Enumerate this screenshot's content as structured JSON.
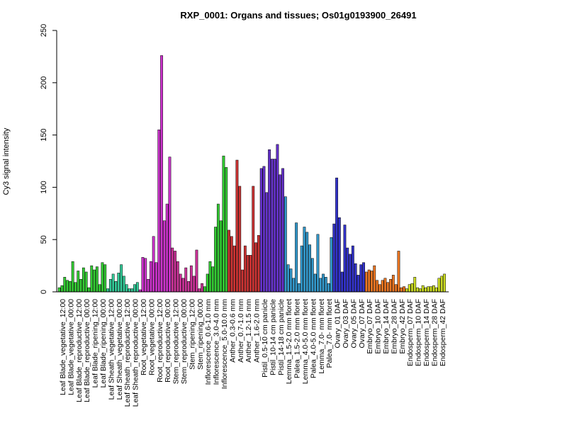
{
  "chart_data": {
    "type": "bar",
    "title": "RXP_0001: Organs and tissues; Os01g0193900_26491",
    "xlabel": "",
    "ylabel": "Cy3 signal intensity",
    "ylim": [
      0,
      250
    ],
    "yticks": [
      0,
      50,
      100,
      150,
      200,
      250
    ],
    "grid": false,
    "legend": "none",
    "groups": [
      {
        "label": "Leaf Blade_vegetative_12:00",
        "color": "#33cc33",
        "values": [
          4,
          6,
          14
        ]
      },
      {
        "label": "Leaf Blade_vegetative_00:00",
        "color": "#33cc33",
        "values": [
          11,
          10,
          29
        ]
      },
      {
        "label": "Leaf Blade_reproductive_12:00",
        "color": "#33cc33",
        "values": [
          9,
          20,
          12
        ]
      },
      {
        "label": "Leaf Blade_reproductive_00:00",
        "color": "#33cc33",
        "values": [
          23,
          19,
          4
        ]
      },
      {
        "label": "Leaf Blade_ripening_12:00",
        "color": "#33cc33",
        "values": [
          25,
          21,
          24
        ]
      },
      {
        "label": "Leaf Blade_ripening_00:00",
        "color": "#33cc33",
        "values": [
          7,
          28,
          26
        ]
      },
      {
        "label": "Leaf Sheath_vegetative_12:00",
        "color": "#33cc99",
        "values": [
          3,
          12,
          17
        ]
      },
      {
        "label": "Leaf Sheath_vegetative_00:00",
        "color": "#33cc99",
        "values": [
          10,
          18,
          26
        ]
      },
      {
        "label": "Leaf Sheath_reproductive_12:00",
        "color": "#33cc99",
        "values": [
          15,
          7,
          3
        ]
      },
      {
        "label": "Leaf Sheath_reproductive_00:00",
        "color": "#33cc99",
        "values": [
          3,
          7,
          9
        ]
      },
      {
        "label": "Root_vegetative_12:00",
        "color": "#cc33cc",
        "values": [
          2,
          33,
          32
        ]
      },
      {
        "label": "Root_vegetative_00:00",
        "color": "#cc33cc",
        "values": [
          12,
          29,
          53
        ]
      },
      {
        "label": "Root_reproductive_12:00",
        "color": "#cc33cc",
        "values": [
          28,
          155,
          226
        ]
      },
      {
        "label": "Root_reproductive_00:00",
        "color": "#cc33cc",
        "values": [
          68,
          84,
          129
        ]
      },
      {
        "label": "Stem_reproductive_12:00",
        "color": "#cc3399",
        "values": [
          42,
          39,
          29
        ]
      },
      {
        "label": "Stem_reproductive_00:00",
        "color": "#cc3399",
        "values": [
          17,
          13,
          23
        ]
      },
      {
        "label": "Stem_ripening_12:00",
        "color": "#cc3399",
        "values": [
          10,
          25,
          15
        ]
      },
      {
        "label": "Stem_ripening_00:00",
        "color": "#cc3399",
        "values": [
          40,
          3,
          8
        ]
      },
      {
        "label": "Inflorescence_0.6-1.0 mm",
        "color": "#33cc33",
        "values": [
          5,
          17,
          29
        ]
      },
      {
        "label": "Inflorescence_3.0-4.0 mm",
        "color": "#33cc33",
        "values": [
          24,
          62,
          84
        ]
      },
      {
        "label": "Inflorescence_5.0-10.0 mm",
        "color": "#33cc33",
        "values": [
          68,
          130,
          119
        ]
      },
      {
        "label": "Anther_0.3-0.6 mm",
        "color": "#cc3333",
        "values": [
          59,
          53,
          44
        ]
      },
      {
        "label": "Anther_0.7-1.0 mm",
        "color": "#cc3333",
        "values": [
          126,
          101,
          21
        ]
      },
      {
        "label": "Anther_1.2-1.5 mm",
        "color": "#cc3333",
        "values": [
          44,
          35,
          35
        ]
      },
      {
        "label": "Anther_1.6-2.0 mm",
        "color": "#cc3333",
        "values": [
          101,
          47,
          54
        ]
      },
      {
        "label": "Pistil_0.5-10 cm panicle",
        "color": "#6633cc",
        "values": [
          118,
          120,
          95
        ]
      },
      {
        "label": "Pistil_10-14 cm panicle",
        "color": "#6633cc",
        "values": [
          136,
          127,
          127
        ]
      },
      {
        "label": "Pistil_14-18 cm panicle",
        "color": "#6633cc",
        "values": [
          141,
          112,
          118
        ]
      },
      {
        "label": "Lemma_1.5-2.0 mm floret",
        "color": "#3399cc",
        "values": [
          91,
          26,
          22
        ]
      },
      {
        "label": "Palea_1.5-2.0 mm floret",
        "color": "#3399cc",
        "values": [
          13,
          66,
          8
        ]
      },
      {
        "label": "Lemma_4.0-5.0 mm floret",
        "color": "#3399cc",
        "values": [
          44,
          62,
          57
        ]
      },
      {
        "label": "Palea_4.0-5.0 mm floret",
        "color": "#3399cc",
        "values": [
          45,
          32,
          17
        ]
      },
      {
        "label": "Lemma_7.0- mm floret",
        "color": "#3399cc",
        "values": [
          55,
          13,
          17
        ]
      },
      {
        "label": "Palea_7.0- mm floret",
        "color": "#3399cc",
        "values": [
          14,
          8,
          52
        ]
      },
      {
        "label": "Ovary_01 DAF",
        "color": "#3333cc",
        "values": [
          65,
          109,
          71
        ]
      },
      {
        "label": "Ovary_03 DAF",
        "color": "#3333cc",
        "values": [
          19,
          64,
          42
        ]
      },
      {
        "label": "Ovary_05 DAF",
        "color": "#3333cc",
        "values": [
          36,
          44,
          27
        ]
      },
      {
        "label": "Ovary_07 DAF",
        "color": "#3333cc",
        "values": [
          16,
          26,
          28
        ]
      },
      {
        "label": "Embryo_07 DAF",
        "color": "#ee7722",
        "values": [
          19,
          21,
          20
        ]
      },
      {
        "label": "Embryo_10 DAF",
        "color": "#ee7722",
        "values": [
          25,
          11,
          7
        ]
      },
      {
        "label": "Embryo_14 DAF",
        "color": "#ee7722",
        "values": [
          11,
          13,
          9
        ]
      },
      {
        "label": "Embryo_28 DAF",
        "color": "#ee7722",
        "values": [
          12,
          16,
          7
        ]
      },
      {
        "label": "Embryo_42 DAF",
        "color": "#ee7722",
        "values": [
          39,
          4,
          5
        ]
      },
      {
        "label": "Endosperm_07 DAF",
        "color": "#ccdd22",
        "values": [
          3,
          7,
          8
        ]
      },
      {
        "label": "Endosperm_10 DAF",
        "color": "#ccdd22",
        "values": [
          14,
          4,
          3
        ]
      },
      {
        "label": "Endosperm_14 DAF",
        "color": "#ccdd22",
        "values": [
          6,
          4,
          5
        ]
      },
      {
        "label": "Endosperm_28 DAF",
        "color": "#ccdd22",
        "values": [
          5,
          6,
          4
        ]
      },
      {
        "label": "Endosperm_42 DAF",
        "color": "#ccdd22",
        "values": [
          13,
          15,
          17
        ]
      }
    ]
  }
}
